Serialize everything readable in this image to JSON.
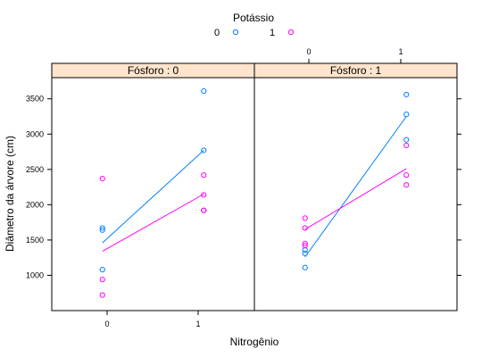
{
  "chart_data": {
    "type": "scatter",
    "legend": {
      "title": "Potássio",
      "placement": "top",
      "entries": [
        {
          "label": "0",
          "color": "#0080ff"
        },
        {
          "label": "1",
          "color": "#ff00ff"
        }
      ]
    },
    "xlabel": "Nitrogênio",
    "ylabel": "Diâmetro da árvore (cm)",
    "x_ticks": [
      "0",
      "1"
    ],
    "xlim": [
      -0.5,
      1.5
    ],
    "ylim": [
      500,
      3800
    ],
    "y_ticks": [
      "1000",
      "1500",
      "2000",
      "2500",
      "3000",
      "3500"
    ],
    "strip_fill": "#ffe5cc",
    "grid": false,
    "panels": [
      {
        "strip": "Fósforo : 0",
        "series": [
          {
            "name": "0",
            "color": "#0080ff",
            "points": [
              [
                0,
                1080
              ],
              [
                0,
                1640
              ],
              [
                0,
                1670
              ],
              [
                1,
                2770
              ],
              [
                1,
                3610
              ]
            ],
            "fit": [
              [
                0,
                1460
              ],
              [
                1,
                2770
              ]
            ]
          },
          {
            "name": "1",
            "color": "#ff00ff",
            "points": [
              [
                0,
                720
              ],
              [
                0,
                940
              ],
              [
                0,
                2370
              ],
              [
                1,
                1920
              ],
              [
                1,
                1920
              ],
              [
                1,
                2140
              ],
              [
                1,
                2420
              ]
            ],
            "fit": [
              [
                0,
                1340
              ],
              [
                1,
                2150
              ]
            ]
          }
        ]
      },
      {
        "strip": "Fósforo : 1",
        "series": [
          {
            "name": "0",
            "color": "#0080ff",
            "points": [
              [
                0,
                1110
              ],
              [
                0,
                1310
              ],
              [
                0,
                1360
              ],
              [
                1,
                2920
              ],
              [
                1,
                3280
              ],
              [
                1,
                3560
              ]
            ],
            "fit": [
              [
                0,
                1260
              ],
              [
                1,
                3250
              ]
            ]
          },
          {
            "name": "1",
            "color": "#ff00ff",
            "points": [
              [
                0,
                1420
              ],
              [
                0,
                1450
              ],
              [
                0,
                1670
              ],
              [
                0,
                1810
              ],
              [
                1,
                2280
              ],
              [
                1,
                2420
              ],
              [
                1,
                2840
              ]
            ],
            "fit": [
              [
                0,
                1650
              ],
              [
                1,
                2510
              ]
            ]
          }
        ]
      }
    ]
  }
}
